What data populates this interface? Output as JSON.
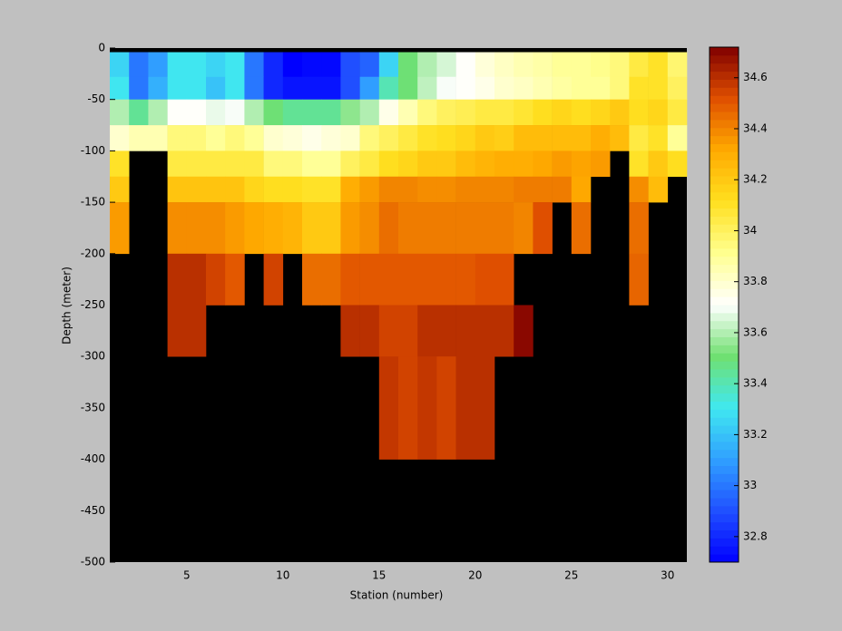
{
  "chart_data": {
    "type": "heatmap",
    "xlabel": "Station (number)",
    "ylabel": "Depth (meter)",
    "xlim": [
      1,
      31
    ],
    "ylim": [
      -500,
      0
    ],
    "xticks": [
      5,
      10,
      15,
      20,
      25,
      30
    ],
    "yticks": [
      0,
      -50,
      -100,
      -150,
      -200,
      -250,
      -300,
      -350,
      -400,
      -450,
      -500
    ],
    "x_edges": [
      1,
      2,
      3,
      4,
      5,
      6,
      7,
      8,
      9,
      10,
      11,
      12,
      13,
      14,
      15,
      16,
      17,
      18,
      19,
      20,
      21,
      22,
      23,
      24,
      25,
      26,
      27,
      28,
      29,
      30,
      31
    ],
    "y_edges": [
      -4,
      -28,
      -50,
      -75,
      -100,
      -125,
      -150,
      -200,
      -250,
      -300,
      -400
    ],
    "values": [
      [
        33.25,
        33.0,
        33.1,
        33.3,
        33.3,
        33.25,
        33.3,
        33.0,
        32.8,
        32.7,
        32.72,
        32.72,
        32.9,
        32.95,
        33.25,
        33.5,
        33.6,
        33.65,
        33.72,
        33.78,
        33.82,
        33.85,
        33.87,
        33.9,
        33.9,
        33.92,
        33.95,
        34.05,
        34.1,
        33.97
      ],
      [
        33.3,
        33.0,
        33.15,
        33.3,
        33.3,
        33.2,
        33.3,
        33.0,
        32.8,
        32.75,
        32.75,
        32.75,
        32.9,
        33.1,
        33.4,
        33.5,
        33.62,
        33.7,
        33.72,
        33.75,
        33.8,
        33.82,
        33.85,
        33.88,
        33.9,
        33.9,
        33.95,
        34.1,
        34.1,
        34.0
      ],
      [
        33.6,
        33.45,
        33.6,
        33.72,
        33.72,
        33.68,
        33.7,
        33.6,
        33.5,
        33.45,
        33.45,
        33.45,
        33.55,
        33.6,
        33.75,
        33.85,
        33.95,
        34.0,
        34.02,
        34.05,
        34.05,
        34.08,
        34.12,
        34.15,
        34.12,
        34.15,
        34.2,
        34.12,
        34.15,
        34.05
      ],
      [
        33.8,
        33.85,
        33.85,
        33.95,
        33.95,
        33.9,
        33.95,
        33.9,
        33.8,
        33.78,
        33.75,
        33.78,
        33.8,
        33.95,
        34.0,
        34.05,
        34.1,
        34.12,
        34.15,
        34.2,
        34.18,
        34.25,
        34.25,
        34.25,
        34.25,
        34.3,
        34.25,
        34.05,
        34.1,
        33.9
      ],
      [
        34.1,
        null,
        null,
        34.05,
        34.05,
        34.05,
        34.05,
        34.05,
        33.95,
        33.95,
        33.9,
        33.9,
        34.0,
        34.05,
        34.12,
        34.15,
        34.2,
        34.2,
        34.25,
        34.28,
        34.3,
        34.3,
        34.32,
        34.35,
        34.33,
        34.35,
        null,
        34.1,
        34.2,
        34.12
      ],
      [
        34.2,
        null,
        null,
        34.22,
        34.22,
        34.22,
        34.22,
        34.15,
        34.12,
        34.12,
        34.1,
        34.1,
        34.3,
        34.35,
        34.4,
        34.4,
        34.38,
        34.38,
        34.4,
        34.4,
        34.4,
        34.42,
        34.42,
        34.42,
        34.32,
        null,
        null,
        34.38,
        34.25,
        null
      ],
      [
        34.35,
        null,
        null,
        34.38,
        34.38,
        34.38,
        34.35,
        34.32,
        34.3,
        34.28,
        34.2,
        34.2,
        34.35,
        34.38,
        34.45,
        34.42,
        34.42,
        34.42,
        34.42,
        34.42,
        34.42,
        34.4,
        34.52,
        null,
        34.45,
        null,
        null,
        34.45,
        null,
        null
      ],
      [
        null,
        null,
        null,
        34.6,
        34.6,
        34.55,
        34.5,
        null,
        34.55,
        null,
        34.45,
        34.45,
        34.5,
        34.5,
        34.5,
        34.5,
        34.5,
        34.5,
        34.5,
        34.52,
        34.52,
        null,
        null,
        null,
        null,
        null,
        null,
        34.47,
        null,
        null
      ],
      [
        null,
        null,
        null,
        34.6,
        34.6,
        null,
        null,
        null,
        null,
        null,
        null,
        null,
        34.6,
        34.6,
        34.55,
        34.55,
        34.6,
        34.6,
        34.6,
        34.6,
        34.6,
        34.7,
        null,
        null,
        null,
        null,
        null,
        null,
        null,
        null
      ],
      [
        null,
        null,
        null,
        null,
        null,
        null,
        null,
        null,
        null,
        null,
        null,
        null,
        null,
        null,
        34.58,
        34.55,
        34.58,
        34.55,
        34.6,
        34.6,
        null,
        null,
        null,
        null,
        null,
        null,
        null,
        null,
        null,
        null
      ]
    ],
    "clim": [
      32.7,
      34.72
    ],
    "colorbar_ticks": [
      32.8,
      33,
      33.2,
      33.4,
      33.6,
      33.8,
      34,
      34.2,
      34.4,
      34.6
    ],
    "colormap": [
      "#0000ff",
      "#2050ff",
      "#30a0ff",
      "#40e8f0",
      "#70e070",
      "#ffffff",
      "#ffff90",
      "#ffe020",
      "#ffaa00",
      "#e05000",
      "#800000"
    ],
    "background": "#000000"
  }
}
